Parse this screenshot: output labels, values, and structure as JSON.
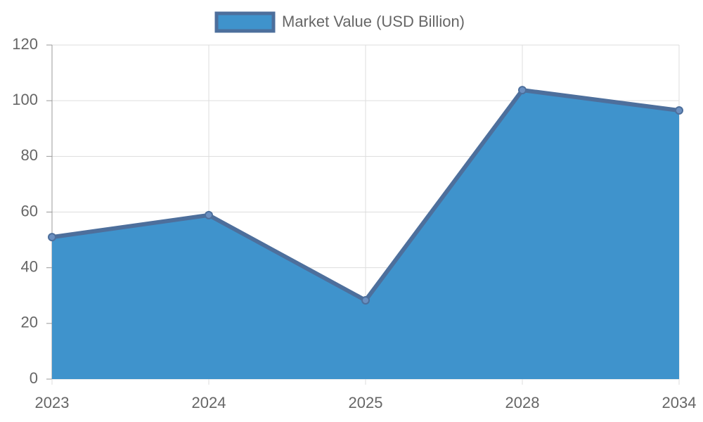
{
  "chart_data": {
    "type": "area",
    "categories": [
      "2023",
      "2024",
      "2025",
      "2028",
      "2034"
    ],
    "series": [
      {
        "name": "Market Value (USD Billion)",
        "color": "#4d6f9c",
        "fill": "#3f93cc",
        "values": [
          51,
          58.9,
          28.3,
          103.8,
          96.5
        ]
      }
    ],
    "ylim": [
      0,
      120
    ],
    "yticks": [
      0,
      20,
      40,
      60,
      80,
      100,
      120
    ],
    "grid": true,
    "legend": "top"
  }
}
